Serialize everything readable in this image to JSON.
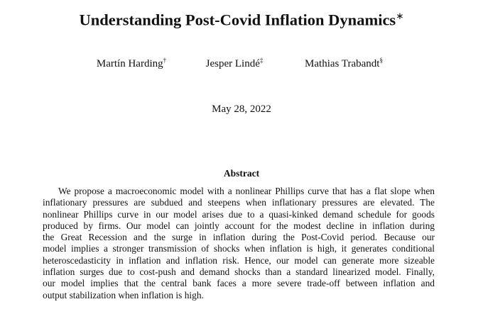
{
  "title": {
    "text": "Understanding Post-Covid Inflation Dynamics",
    "mark": "∗"
  },
  "authors": [
    {
      "name": "Martín Harding",
      "mark": "†"
    },
    {
      "name": "Jesper Lindé",
      "mark": "‡"
    },
    {
      "name": "Mathias Trabandt",
      "mark": "§"
    }
  ],
  "date": "May 28, 2022",
  "abstract": {
    "heading": "Abstract",
    "lines": [
      "We propose a macroeconomic model with a nonlinear Phillips curve that has a flat slope when",
      "inflationary pressures are subdued and steepens when inflationary pressures are elevated. The",
      "nonlinear Phillips curve in our model arises due to a quasi-kinked demand schedule for goods",
      "produced by firms. Our model can jointly account for the modest decline in inflation during",
      "the Great Recession and the surge in inflation during the Post-Covid period. Because our",
      "model implies a stronger transmission of shocks when inflation is high, it generates conditional",
      "heteroscedasticity in inflation and inflation risk. Hence, our model can generate more sizeable",
      "inflation surges due to cost-push and demand shocks than a standard linearized model. Finally,",
      "our model implies that the central bank faces a more severe trade-off between inflation and",
      "output stabilization when inflation is high."
    ]
  }
}
